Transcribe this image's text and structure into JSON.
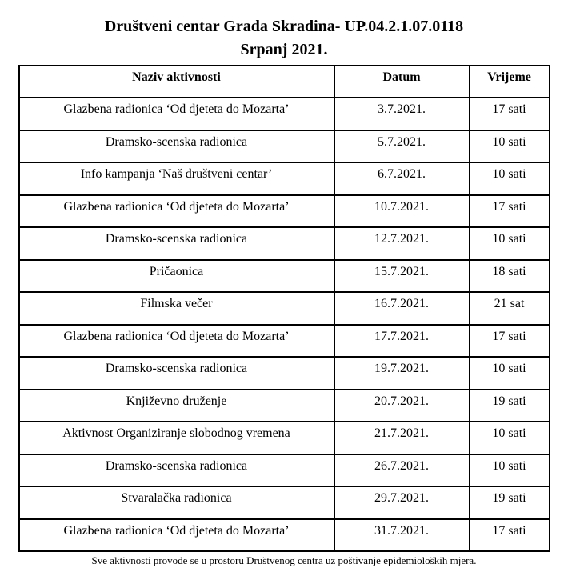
{
  "document": {
    "title_line1": "Društveni centar Grada Skradina- UP.04.2.1.07.0118",
    "title_line2": "Srpanj 2021.",
    "footer_note": "Sve aktivnosti provode se u prostoru Društvenog centra uz poštivanje epidemioloških mjera."
  },
  "schedule_table": {
    "columns": [
      "Naziv aktivnosti",
      "Datum",
      "Vrijeme"
    ],
    "rows": [
      {
        "activity": "Glazbena radionica ‘Od djeteta do Mozarta’",
        "date": "3.7.2021.",
        "time": "17 sati"
      },
      {
        "activity": "Dramsko-scenska radionica",
        "date": "5.7.2021.",
        "time": "10 sati"
      },
      {
        "activity": "Info kampanja ‘Naš društveni centar’",
        "date": "6.7.2021.",
        "time": "10 sati"
      },
      {
        "activity": "Glazbena radionica ‘Od djeteta do Mozarta’",
        "date": "10.7.2021.",
        "time": "17 sati"
      },
      {
        "activity": "Dramsko-scenska radionica",
        "date": "12.7.2021.",
        "time": "10 sati"
      },
      {
        "activity": "Pričaonica",
        "date": "15.7.2021.",
        "time": "18 sati"
      },
      {
        "activity": "Filmska večer",
        "date": "16.7.2021.",
        "time": "21 sat"
      },
      {
        "activity": "Glazbena radionica ‘Od djeteta do Mozarta’",
        "date": "17.7.2021.",
        "time": "17 sati"
      },
      {
        "activity": "Dramsko-scenska radionica",
        "date": "19.7.2021.",
        "time": "10 sati"
      },
      {
        "activity": "Književno druženje",
        "date": "20.7.2021.",
        "time": "19 sati"
      },
      {
        "activity": "Aktivnost Organiziranje slobodnog vremena",
        "date": "21.7.2021.",
        "time": "10 sati"
      },
      {
        "activity": "Dramsko-scenska radionica",
        "date": "26.7.2021.",
        "time": "10 sati"
      },
      {
        "activity": "Stvaralačka radionica",
        "date": "29.7.2021.",
        "time": "19 sati"
      },
      {
        "activity": "Glazbena radionica ‘Od djeteta do Mozarta’",
        "date": "31.7.2021.",
        "time": "17 sati"
      }
    ]
  },
  "colors": {
    "background": "#ffffff",
    "text": "#000000",
    "border": "#000000"
  }
}
